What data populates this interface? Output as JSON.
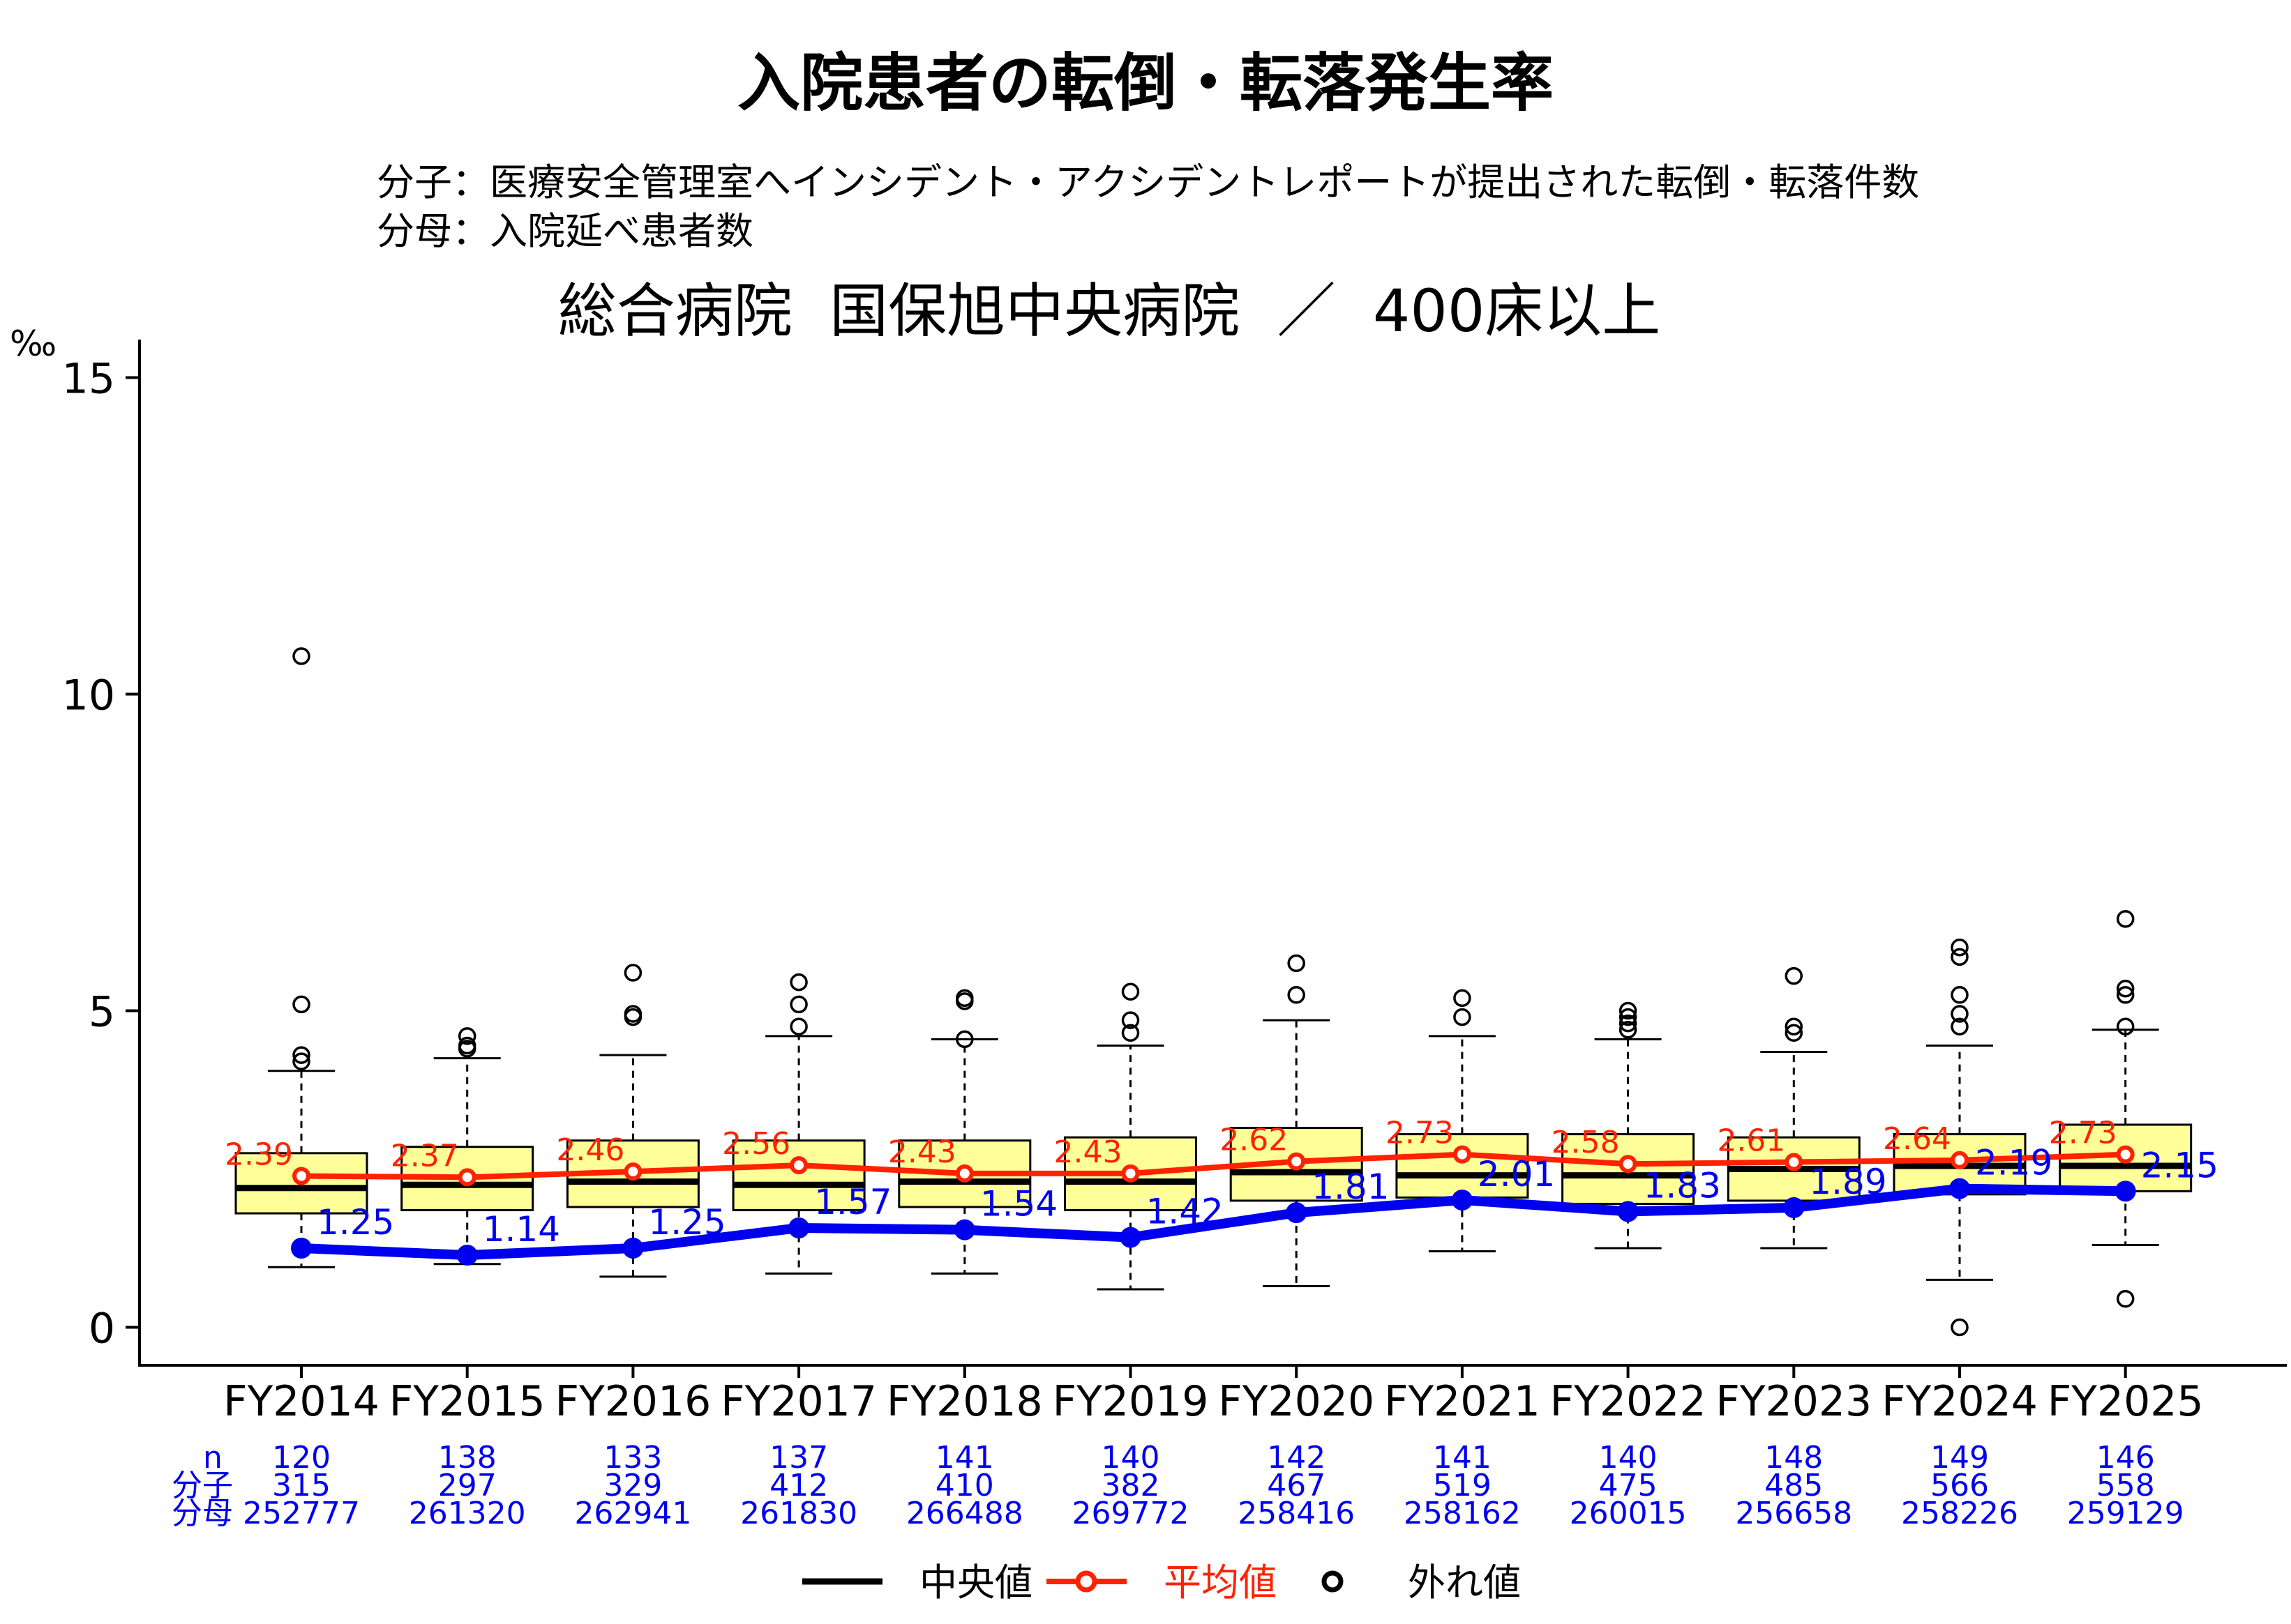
{
  "title": "入院患者の転倒・転落発生率",
  "subtitle_numerator": "分子：医療安全管理室へインシデント・アクシデントレポートが提出された転倒・転落件数",
  "subtitle_denominator": "分母：入院延べ患者数",
  "hospital": "総合病院  国保旭中央病院  ／  400床以上",
  "unit": "‰",
  "row_labels": {
    "n": "n",
    "numerator": "分子",
    "denominator": "分母"
  },
  "legend": {
    "median": "中央値",
    "mean": "平均値",
    "outlier": "外れ値"
  },
  "colors": {
    "box_fill": "#ffff99",
    "mean_line": "#ff2200",
    "hospital_line": "#0000ee",
    "median_line": "#000000",
    "stat_text": "#0000ee"
  },
  "chart_data": {
    "type": "box",
    "ylim": [
      -0.6,
      15.6
    ],
    "yticks": [
      0,
      5,
      10,
      15
    ],
    "yticklabels": [
      "0",
      "5",
      "10",
      "15"
    ],
    "categories": [
      "FY2014",
      "FY2015",
      "FY2016",
      "FY2017",
      "FY2018",
      "FY2019",
      "FY2020",
      "FY2021",
      "FY2022",
      "FY2023",
      "FY2024",
      "FY2025"
    ],
    "boxes": [
      {
        "whisker_low": 0.95,
        "q1": 1.8,
        "median": 2.2,
        "q3": 2.75,
        "whisker_high": 4.05,
        "outliers": [
          4.2,
          4.3,
          5.1,
          10.6
        ]
      },
      {
        "whisker_low": 1.0,
        "q1": 1.85,
        "median": 2.25,
        "q3": 2.85,
        "whisker_high": 4.25,
        "outliers": [
          4.4,
          4.45,
          4.6
        ]
      },
      {
        "whisker_low": 0.8,
        "q1": 1.9,
        "median": 2.3,
        "q3": 2.95,
        "whisker_high": 4.3,
        "outliers": [
          4.9,
          4.95,
          5.6
        ]
      },
      {
        "whisker_low": 0.85,
        "q1": 1.85,
        "median": 2.25,
        "q3": 2.95,
        "whisker_high": 4.6,
        "outliers": [
          4.75,
          5.1,
          5.45
        ]
      },
      {
        "whisker_low": 0.85,
        "q1": 1.9,
        "median": 2.3,
        "q3": 2.95,
        "whisker_high": 4.55,
        "outliers": [
          4.55,
          5.15,
          5.2
        ]
      },
      {
        "whisker_low": 0.6,
        "q1": 1.85,
        "median": 2.3,
        "q3": 3.0,
        "whisker_high": 4.45,
        "outliers": [
          4.65,
          4.85,
          5.3
        ]
      },
      {
        "whisker_low": 0.65,
        "q1": 2.0,
        "median": 2.45,
        "q3": 3.15,
        "whisker_high": 4.85,
        "outliers": [
          5.25,
          5.75
        ]
      },
      {
        "whisker_low": 1.2,
        "q1": 2.05,
        "median": 2.4,
        "q3": 3.05,
        "whisker_high": 4.6,
        "outliers": [
          4.9,
          5.2
        ]
      },
      {
        "whisker_low": 1.25,
        "q1": 1.95,
        "median": 2.4,
        "q3": 3.05,
        "whisker_high": 4.55,
        "outliers": [
          4.7,
          4.8,
          4.9,
          5.0
        ]
      },
      {
        "whisker_low": 1.25,
        "q1": 2.0,
        "median": 2.5,
        "q3": 3.0,
        "whisker_high": 4.35,
        "outliers": [
          4.65,
          4.75,
          5.55
        ]
      },
      {
        "whisker_low": 0.75,
        "q1": 2.1,
        "median": 2.55,
        "q3": 3.05,
        "whisker_high": 4.45,
        "outliers": [
          0.0,
          4.75,
          4.95,
          5.25,
          5.85,
          6.0
        ]
      },
      {
        "whisker_low": 1.3,
        "q1": 2.15,
        "median": 2.55,
        "q3": 3.2,
        "whisker_high": 4.7,
        "outliers": [
          0.45,
          4.75,
          5.25,
          5.35,
          6.45
        ]
      }
    ],
    "mean": {
      "name": "平均値",
      "values": [
        2.39,
        2.37,
        2.46,
        2.56,
        2.43,
        2.43,
        2.62,
        2.73,
        2.58,
        2.61,
        2.64,
        2.73
      ],
      "labels": [
        "2.39",
        "2.37",
        "2.46",
        "2.56",
        "2.43",
        "2.43",
        "2.62",
        "2.73",
        "2.58",
        "2.61",
        "2.64",
        "2.73"
      ]
    },
    "hospital": {
      "values": [
        1.25,
        1.14,
        1.25,
        1.57,
        1.54,
        1.42,
        1.81,
        2.01,
        1.83,
        1.89,
        2.19,
        2.15
      ],
      "labels": [
        "1.25",
        "1.14",
        "1.25",
        "1.57",
        "1.54",
        "1.42",
        "1.81",
        "2.01",
        "1.83",
        "1.89",
        "2.19",
        "2.15"
      ]
    },
    "n": [
      "120",
      "138",
      "133",
      "137",
      "141",
      "140",
      "142",
      "141",
      "140",
      "148",
      "149",
      "146"
    ],
    "numerator": [
      "315",
      "297",
      "329",
      "412",
      "410",
      "382",
      "467",
      "519",
      "475",
      "485",
      "566",
      "558"
    ],
    "denominator": [
      "252777",
      "261320",
      "262941",
      "261830",
      "266488",
      "269772",
      "258416",
      "258162",
      "260015",
      "256658",
      "258226",
      "259129"
    ]
  }
}
